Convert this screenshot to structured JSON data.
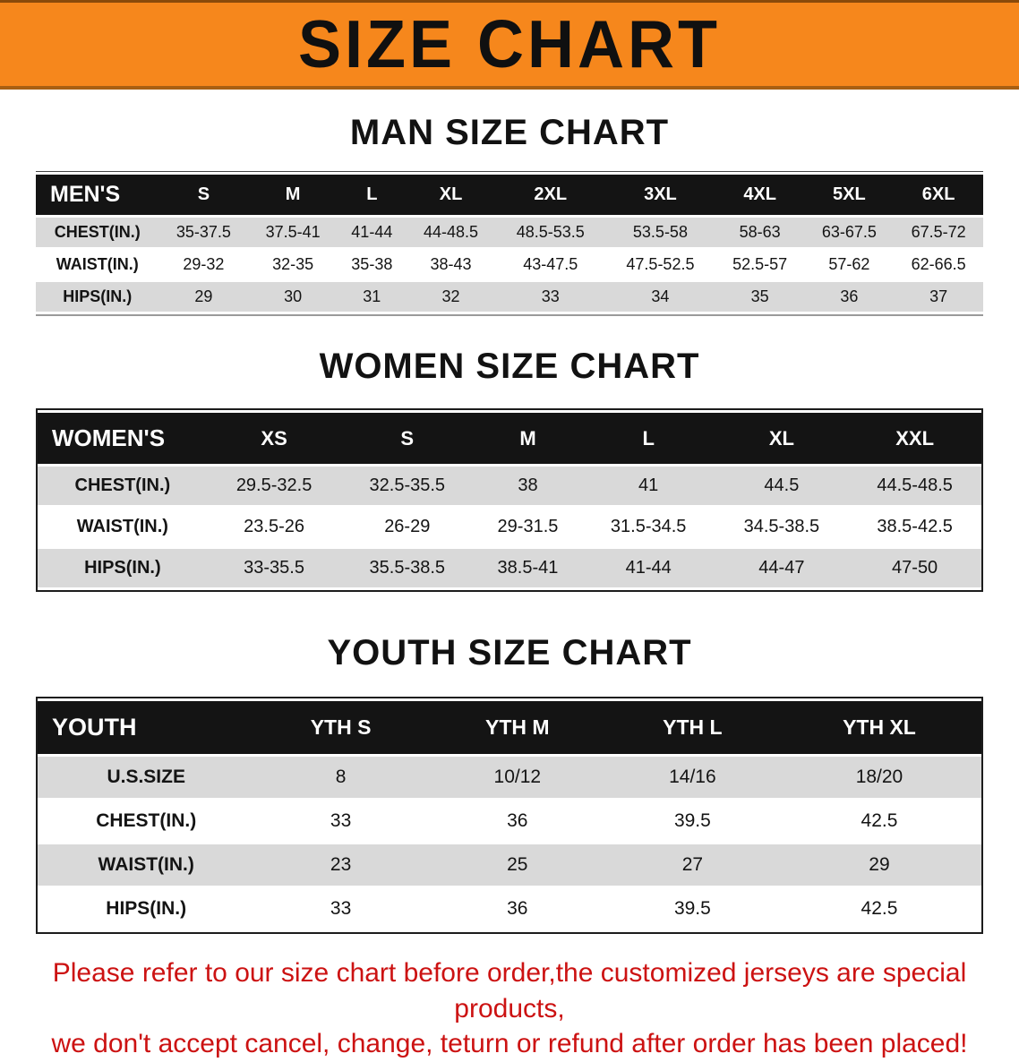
{
  "banner": {
    "title": "SIZE CHART"
  },
  "colors": {
    "banner_orange": "#f6871c",
    "table_header_black": "#141414",
    "row_gray": "#d9d9d9",
    "note_red": "#cc1212"
  },
  "sections": [
    {
      "heading": "MAN SIZE CHART",
      "table": {
        "header_label": "MEN'S",
        "columns": [
          "S",
          "M",
          "L",
          "XL",
          "2XL",
          "3XL",
          "4XL",
          "5XL",
          "6XL"
        ],
        "rows": [
          {
            "label": "CHEST(IN.)",
            "values": [
              "35-37.5",
              "37.5-41",
              "41-44",
              "44-48.5",
              "48.5-53.5",
              "53.5-58",
              "58-63",
              "63-67.5",
              "67.5-72"
            ]
          },
          {
            "label": "WAIST(IN.)",
            "values": [
              "29-32",
              "32-35",
              "35-38",
              "38-43",
              "43-47.5",
              "47.5-52.5",
              "52.5-57",
              "57-62",
              "62-66.5"
            ]
          },
          {
            "label": "HIPS(IN.)",
            "values": [
              "29",
              "30",
              "31",
              "32",
              "33",
              "34",
              "35",
              "36",
              "37"
            ]
          }
        ]
      }
    },
    {
      "heading": "WOMEN SIZE CHART",
      "table": {
        "header_label": "WOMEN'S",
        "columns": [
          "XS",
          "S",
          "M",
          "L",
          "XL",
          "XXL"
        ],
        "rows": [
          {
            "label": "CHEST(IN.)",
            "values": [
              "29.5-32.5",
              "32.5-35.5",
              "38",
              "41",
              "44.5",
              "44.5-48.5"
            ]
          },
          {
            "label": "WAIST(IN.)",
            "values": [
              "23.5-26",
              "26-29",
              "29-31.5",
              "31.5-34.5",
              "34.5-38.5",
              "38.5-42.5"
            ]
          },
          {
            "label": "HIPS(IN.)",
            "values": [
              "33-35.5",
              "35.5-38.5",
              "38.5-41",
              "41-44",
              "44-47",
              "47-50"
            ]
          }
        ]
      }
    },
    {
      "heading": "YOUTH SIZE CHART",
      "table": {
        "header_label": "YOUTH",
        "columns": [
          "YTH S",
          "YTH M",
          "YTH L",
          "YTH XL"
        ],
        "rows": [
          {
            "label": "U.S.SIZE",
            "values": [
              "8",
              "10/12",
              "14/16",
              "18/20"
            ]
          },
          {
            "label": "CHEST(IN.)",
            "values": [
              "33",
              "36",
              "39.5",
              "42.5"
            ]
          },
          {
            "label": "WAIST(IN.)",
            "values": [
              "23",
              "25",
              "27",
              "29"
            ]
          },
          {
            "label": "HIPS(IN.)",
            "values": [
              "33",
              "36",
              "39.5",
              "42.5"
            ]
          }
        ]
      }
    }
  ],
  "footer": {
    "line1": "Please refer to our size chart before order,the customized jerseys are special products,",
    "line2": "we don't accept cancel, change, teturn or refund after order has been placed!"
  }
}
